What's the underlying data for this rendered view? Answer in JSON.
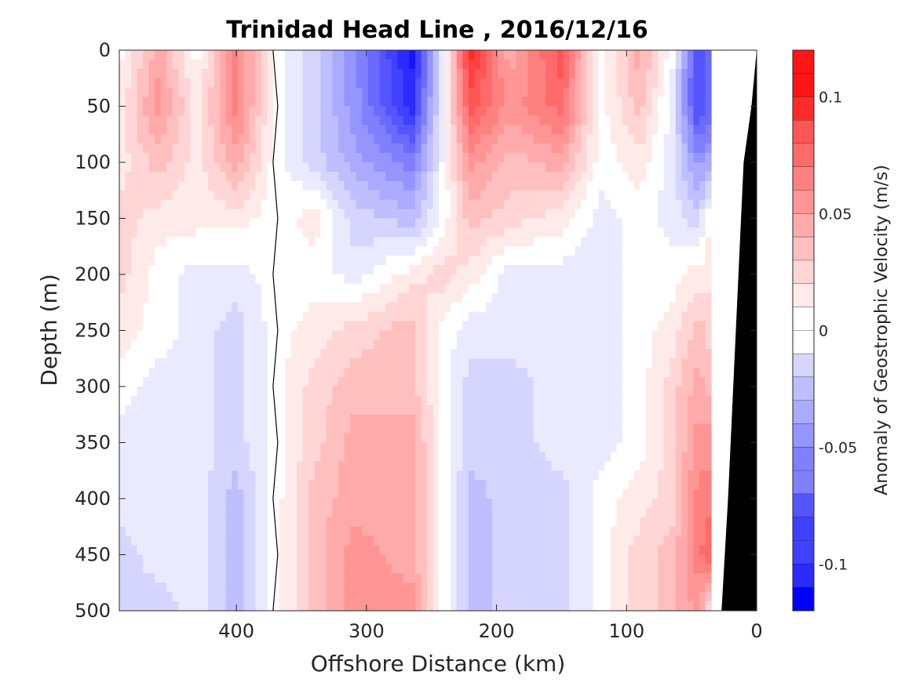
{
  "chart_data": {
    "type": "heatmap",
    "subtype": "filled-contour",
    "title": "Trinidad Head Line , 2016/12/16",
    "xlabel": "Offshore Distance (km)",
    "ylabel": "Depth (m)",
    "xlim": [
      490,
      0
    ],
    "ylim": [
      0,
      500
    ],
    "x_reversed": true,
    "y_reversed": true,
    "x_ticks": [
      400,
      300,
      200,
      100,
      0
    ],
    "y_ticks": [
      0,
      50,
      100,
      150,
      200,
      250,
      300,
      350,
      400,
      450,
      500
    ],
    "colorbar": {
      "label": "Anomaly of Geostrophic Velocity (m/s)",
      "clim": [
        -0.12,
        0.12
      ],
      "ticks": [
        0.1,
        0.05,
        0,
        -0.05,
        -0.1
      ],
      "tick_labels": [
        "0.1",
        "0.05",
        "0",
        "-0.05",
        "-0.1"
      ],
      "contour_step": 0.01,
      "colormap": "blue-white-red",
      "neg_color": "#0000ff",
      "zero_color": "#ffffff",
      "pos_color": "#ff0000"
    },
    "x_distance_km": [
      490,
      460,
      430,
      400,
      370,
      340,
      310,
      265,
      240,
      220,
      190,
      150,
      120,
      90,
      65,
      45,
      35
    ],
    "depth_m": [
      0,
      50,
      100,
      150,
      200,
      250,
      300,
      350,
      400,
      450,
      500
    ],
    "velocity_m_s": [
      [
        0.0,
        0.04,
        0.0,
        0.06,
        0.0,
        -0.02,
        -0.05,
        -0.11,
        0.0,
        0.1,
        0.04,
        0.08,
        0.0,
        0.04,
        0.0,
        -0.09,
        -0.07
      ],
      [
        0.01,
        0.05,
        0.01,
        0.06,
        0.0,
        -0.02,
        -0.05,
        -0.1,
        0.0,
        0.08,
        0.05,
        0.07,
        0.0,
        0.03,
        -0.01,
        -0.09,
        -0.07
      ],
      [
        0.01,
        0.03,
        0.01,
        0.04,
        0.0,
        -0.02,
        -0.04,
        -0.06,
        0.0,
        0.05,
        0.03,
        0.04,
        0.0,
        0.01,
        -0.01,
        -0.05,
        -0.04
      ],
      [
        0.02,
        0.01,
        0.01,
        0.01,
        0.0,
        0.01,
        -0.02,
        -0.03,
        0.0,
        0.03,
        0.02,
        0.01,
        -0.01,
        0.0,
        -0.01,
        -0.02,
        0.01
      ],
      [
        0.02,
        0.0,
        -0.01,
        -0.01,
        0.0,
        0.0,
        -0.01,
        0.01,
        0.02,
        0.01,
        -0.01,
        -0.01,
        -0.01,
        0.0,
        0.0,
        0.01,
        0.01
      ],
      [
        0.01,
        0.0,
        -0.01,
        -0.02,
        0.0,
        0.01,
        0.02,
        0.03,
        0.0,
        -0.01,
        -0.01,
        -0.01,
        -0.01,
        0.0,
        0.01,
        0.03,
        0.02
      ],
      [
        0.0,
        -0.01,
        -0.01,
        -0.02,
        0.0,
        0.02,
        0.03,
        0.03,
        0.0,
        -0.02,
        -0.02,
        -0.01,
        -0.01,
        0.0,
        0.02,
        0.04,
        0.03
      ],
      [
        -0.01,
        -0.01,
        -0.01,
        -0.02,
        0.0,
        0.02,
        0.04,
        0.04,
        0.0,
        -0.02,
        -0.02,
        -0.01,
        -0.01,
        0.0,
        0.02,
        0.05,
        0.05
      ],
      [
        -0.01,
        -0.01,
        -0.01,
        -0.03,
        0.0,
        0.03,
        0.04,
        0.04,
        0.0,
        -0.03,
        -0.02,
        -0.02,
        0.0,
        0.01,
        0.02,
        0.06,
        0.06
      ],
      [
        -0.02,
        -0.01,
        -0.01,
        -0.03,
        0.0,
        0.03,
        0.05,
        0.04,
        0.0,
        -0.03,
        -0.02,
        -0.02,
        0.0,
        0.02,
        0.03,
        0.06,
        0.08
      ],
      [
        -0.02,
        -0.02,
        -0.01,
        -0.03,
        0.0,
        0.03,
        0.05,
        0.05,
        0.0,
        -0.03,
        -0.02,
        -0.02,
        0.0,
        0.02,
        0.03,
        0.05,
        0.0
      ]
    ],
    "bathymetry": {
      "description": "seafloor (black) near the coast",
      "profile": [
        [
          0,
          0
        ],
        [
          4,
          50
        ],
        [
          10,
          100
        ],
        [
          14,
          200
        ],
        [
          18,
          300
        ],
        [
          22,
          400
        ],
        [
          27,
          500
        ]
      ],
      "color": "#000000"
    },
    "zero_contour_color": "#000000"
  }
}
